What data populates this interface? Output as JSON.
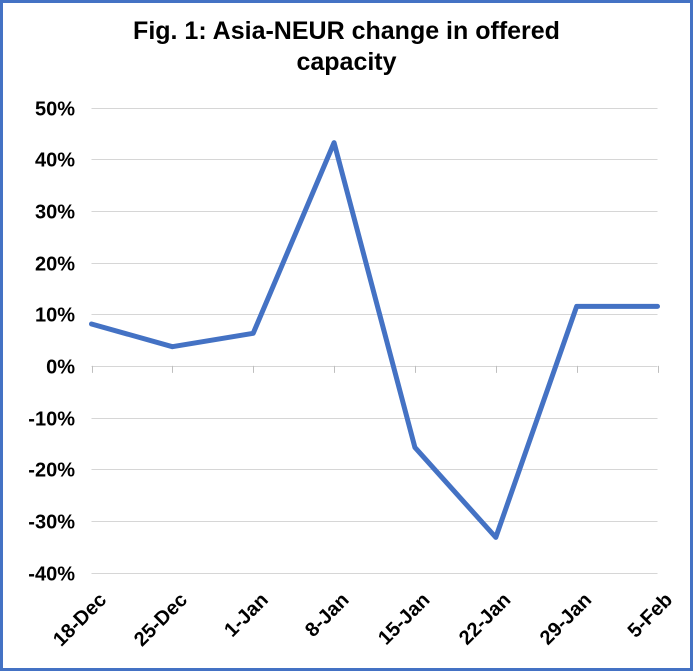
{
  "frame": {
    "border_color": "#4472C4",
    "background": "#ffffff"
  },
  "chart_data": {
    "type": "line",
    "title": "Fig. 1: Asia-NEUR change in offered capacity",
    "categories": [
      "18-Dec",
      "25-Dec",
      "1-Jan",
      "8-Jan",
      "15-Jan",
      "22-Jan",
      "29-Jan",
      "5-Feb"
    ],
    "values": [
      8.1,
      3.7,
      6.3,
      43.2,
      -15.8,
      -33.2,
      11.5,
      11.5
    ],
    "unit": "percent",
    "xlabel": "",
    "ylabel": "",
    "ylim": [
      -40,
      50
    ],
    "y_tick_step": 10,
    "y_tick_labels": [
      "50%",
      "40%",
      "30%",
      "20%",
      "10%",
      "0%",
      "-10%",
      "-20%",
      "-30%",
      "-40%"
    ],
    "grid": true,
    "legend_position": "none",
    "line_color": "#4472C4",
    "gridline_color": "#D6D6D6",
    "tick_color": "#BFBFBF",
    "x_axis_position": "zero-line-with-low-labels"
  }
}
